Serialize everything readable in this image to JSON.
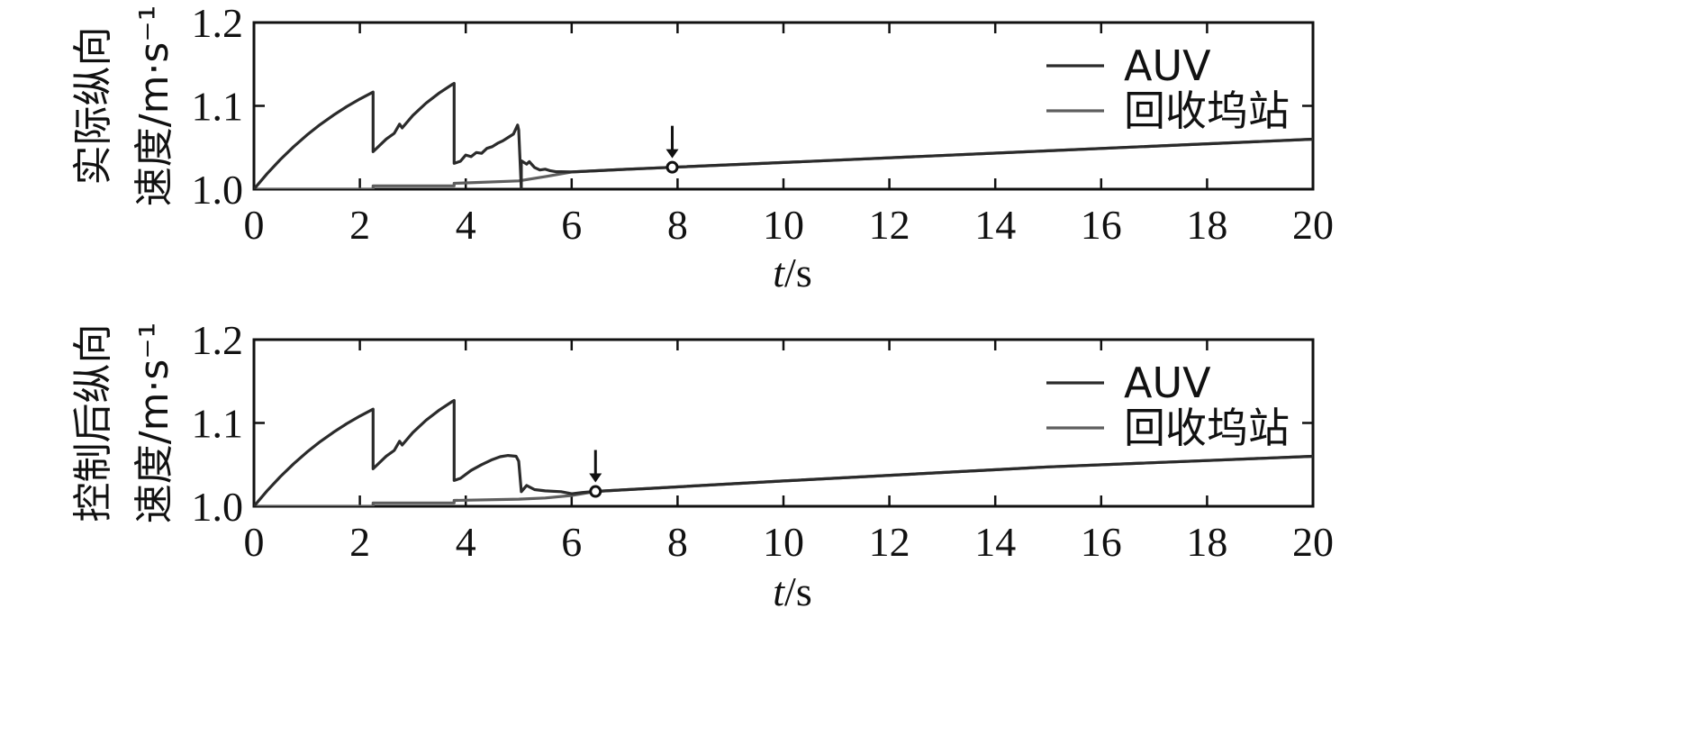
{
  "chart_data": [
    {
      "type": "line",
      "ylabel_lines": [
        "实际纵向",
        "速度/m·s⁻¹"
      ],
      "xlabel_italic": "t",
      "xlabel_unit": "/s",
      "xlim": [
        0,
        20
      ],
      "ylim": [
        1.0,
        1.2
      ],
      "xticks": [
        0,
        2,
        4,
        6,
        8,
        10,
        12,
        14,
        16,
        18,
        20
      ],
      "yticks": [
        1.0,
        1.1,
        1.2
      ],
      "ytick_labels": [
        "1.0",
        "1.1",
        "1.2"
      ],
      "grid": false,
      "legend_position": "top-right",
      "series": [
        {
          "name": "AUV",
          "color": "#2b2b2b",
          "points": [
            [
              0,
              1.0
            ],
            [
              0.25,
              1.0187
            ],
            [
              0.5,
              1.0357
            ],
            [
              0.75,
              1.051
            ],
            [
              1.0,
              1.065
            ],
            [
              1.25,
              1.0775
            ],
            [
              1.5,
              1.0888
            ],
            [
              1.75,
              1.099
            ],
            [
              2.0,
              1.1082
            ],
            [
              2.25,
              1.1165
            ],
            [
              2.25,
              1.045
            ],
            [
              2.5,
              1.0602
            ],
            [
              2.65,
              1.067
            ],
            [
              2.75,
              1.078
            ],
            [
              2.8,
              1.0735
            ],
            [
              3.0,
              1.0884
            ],
            [
              3.25,
              1.1032
            ],
            [
              3.5,
              1.1155
            ],
            [
              3.75,
              1.126
            ],
            [
              3.78,
              1.127
            ],
            [
              3.78,
              1.031
            ],
            [
              3.9,
              1.0335
            ],
            [
              4.0,
              1.041
            ],
            [
              4.1,
              1.039
            ],
            [
              4.2,
              1.044
            ],
            [
              4.3,
              1.043
            ],
            [
              4.4,
              1.049
            ],
            [
              4.5,
              1.051
            ],
            [
              4.6,
              1.055
            ],
            [
              4.7,
              1.058
            ],
            [
              4.8,
              1.062
            ],
            [
              4.9,
              1.066
            ],
            [
              4.98,
              1.077
            ],
            [
              5.0,
              1.071
            ],
            [
              5.05,
              1.0
            ],
            [
              5.05,
              1.034
            ],
            [
              5.15,
              1.03
            ],
            [
              5.2,
              1.033
            ],
            [
              5.3,
              1.026
            ],
            [
              5.4,
              1.023
            ],
            [
              5.5,
              1.024
            ],
            [
              5.6,
              1.022
            ],
            [
              5.7,
              1.021
            ],
            [
              5.8,
              1.021
            ],
            [
              6.0,
              1.0207
            ],
            [
              7.0,
              1.0238
            ],
            [
              7.9,
              1.0263
            ],
            [
              10,
              1.032
            ],
            [
              15,
              1.046
            ],
            [
              20,
              1.06
            ]
          ]
        },
        {
          "name": "回收坞站",
          "color": "#5e5e5e",
          "points": [
            [
              0,
              1.0
            ],
            [
              2.25,
              1.0
            ],
            [
              2.25,
              1.004
            ],
            [
              3.78,
              1.004
            ],
            [
              3.78,
              1.007
            ],
            [
              5.0,
              1.01
            ],
            [
              5.5,
              1.015
            ],
            [
              6.0,
              1.0207
            ],
            [
              7.0,
              1.0238
            ],
            [
              7.9,
              1.0263
            ],
            [
              10,
              1.032
            ],
            [
              15,
              1.046
            ],
            [
              20,
              1.06
            ]
          ]
        }
      ],
      "annotations": [
        {
          "type": "arrow-marker",
          "x": 7.9,
          "y": 1.0263
        }
      ]
    },
    {
      "type": "line",
      "ylabel_lines": [
        "控制后纵向",
        "速度/m·s⁻¹"
      ],
      "xlabel_italic": "t",
      "xlabel_unit": "/s",
      "xlim": [
        0,
        20
      ],
      "ylim": [
        1.0,
        1.2
      ],
      "xticks": [
        0,
        2,
        4,
        6,
        8,
        10,
        12,
        14,
        16,
        18,
        20
      ],
      "yticks": [
        1.0,
        1.1,
        1.2
      ],
      "ytick_labels": [
        "1.0",
        "1.1",
        "1.2"
      ],
      "grid": false,
      "legend_position": "top-right",
      "series": [
        {
          "name": "AUV",
          "color": "#2b2b2b",
          "points": [
            [
              0,
              1.0
            ],
            [
              0.25,
              1.0187
            ],
            [
              0.5,
              1.0357
            ],
            [
              0.75,
              1.051
            ],
            [
              1.0,
              1.065
            ],
            [
              1.25,
              1.0775
            ],
            [
              1.5,
              1.0888
            ],
            [
              1.75,
              1.099
            ],
            [
              2.0,
              1.1082
            ],
            [
              2.25,
              1.1165
            ],
            [
              2.25,
              1.045
            ],
            [
              2.5,
              1.0602
            ],
            [
              2.65,
              1.067
            ],
            [
              2.75,
              1.078
            ],
            [
              2.8,
              1.0735
            ],
            [
              3.0,
              1.0884
            ],
            [
              3.25,
              1.1032
            ],
            [
              3.5,
              1.1155
            ],
            [
              3.75,
              1.126
            ],
            [
              3.78,
              1.127
            ],
            [
              3.78,
              1.031
            ],
            [
              3.9,
              1.0335
            ],
            [
              4.1,
              1.043
            ],
            [
              4.3,
              1.05
            ],
            [
              4.5,
              1.056
            ],
            [
              4.65,
              1.0595
            ],
            [
              4.8,
              1.061
            ],
            [
              4.95,
              1.06
            ],
            [
              5.0,
              1.054
            ],
            [
              5.05,
              1.0175
            ],
            [
              5.15,
              1.025
            ],
            [
              5.3,
              1.02
            ],
            [
              5.5,
              1.0185
            ],
            [
              5.8,
              1.0175
            ],
            [
              6.0,
              1.015
            ],
            [
              6.2,
              1.0165
            ],
            [
              6.45,
              1.0178
            ],
            [
              10,
              1.0304
            ],
            [
              15,
              1.0472
            ],
            [
              20,
              1.06
            ]
          ]
        },
        {
          "name": "回收坞站",
          "color": "#5e5e5e",
          "points": [
            [
              0,
              1.0
            ],
            [
              2.25,
              1.0
            ],
            [
              2.25,
              1.004
            ],
            [
              3.78,
              1.004
            ],
            [
              3.78,
              1.007
            ],
            [
              5.0,
              1.0085
            ],
            [
              5.5,
              1.01
            ],
            [
              6.0,
              1.013
            ],
            [
              6.45,
              1.0178
            ],
            [
              10,
              1.0304
            ],
            [
              15,
              1.0472
            ],
            [
              20,
              1.06
            ]
          ]
        }
      ],
      "annotations": [
        {
          "type": "arrow-marker",
          "x": 6.45,
          "y": 1.0178
        }
      ]
    }
  ]
}
